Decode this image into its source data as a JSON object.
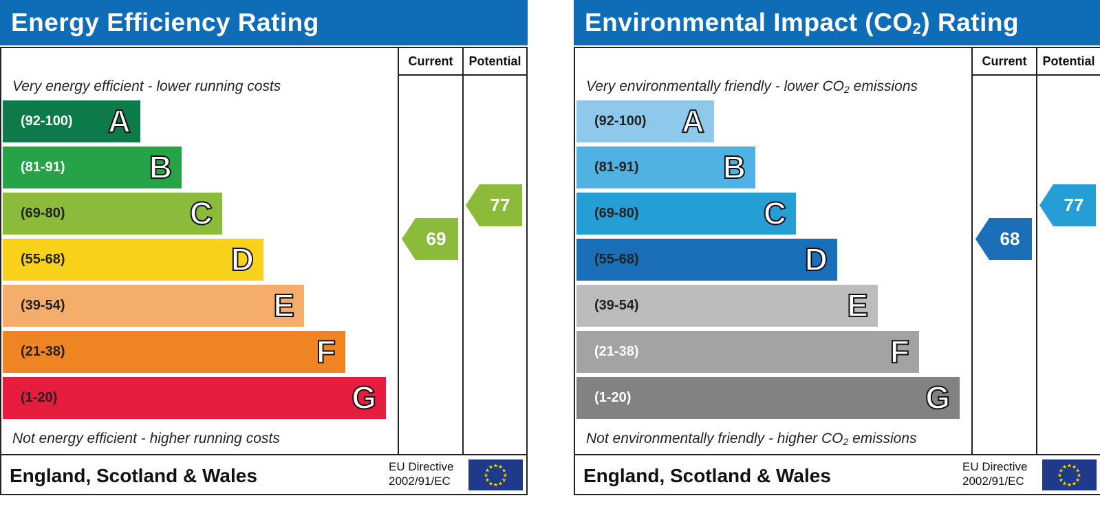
{
  "charts": [
    {
      "title": "Energy Efficiency Rating",
      "columns": {
        "current": "Current",
        "potential": "Potential"
      },
      "top_caption": "Very energy efficient - lower running costs",
      "bottom_caption": "Not energy efficient - higher running costs",
      "bands": [
        {
          "range": "(92-100)",
          "letter": "A",
          "color": "#0e7a4a",
          "text_color": "#ffffff"
        },
        {
          "range": "(81-91)",
          "letter": "B",
          "color": "#27a347",
          "text_color": "#ffffff"
        },
        {
          "range": "(69-80)",
          "letter": "C",
          "color": "#8cbb3c",
          "text_color": "#222222"
        },
        {
          "range": "(55-68)",
          "letter": "D",
          "color": "#f8d11a",
          "text_color": "#222222"
        },
        {
          "range": "(39-54)",
          "letter": "E",
          "color": "#f5ad6b",
          "text_color": "#222222"
        },
        {
          "range": "(21-38)",
          "letter": "F",
          "color": "#ee8424",
          "text_color": "#222222"
        },
        {
          "range": "(1-20)",
          "letter": "G",
          "color": "#e61d3c",
          "text_color": "#222222"
        }
      ],
      "current": {
        "value": "69",
        "color": "#8cbb3c"
      },
      "potential": {
        "value": "77",
        "color": "#8cbb3c"
      },
      "region": "England, Scotland & Wales",
      "directive_line1": "EU Directive",
      "directive_line2": "2002/91/EC"
    },
    {
      "title_parts": {
        "before": "Environmental Impact (CO",
        "sub": "2",
        "after": ") Rating"
      },
      "columns": {
        "current": "Current",
        "potential": "Potential"
      },
      "top_caption_parts": {
        "before": "Very environmentally friendly - lower CO",
        "sub": "2",
        "after": " emissions"
      },
      "bottom_caption_parts": {
        "before": "Not environmentally friendly - higher CO",
        "sub": "2",
        "after": " emissions"
      },
      "bands": [
        {
          "range": "(92-100)",
          "letter": "A",
          "color": "#8ec9ec",
          "text_color": "#222222"
        },
        {
          "range": "(81-91)",
          "letter": "B",
          "color": "#4fb2e3",
          "text_color": "#222222"
        },
        {
          "range": "(69-80)",
          "letter": "C",
          "color": "#249ed4",
          "text_color": "#222222"
        },
        {
          "range": "(55-68)",
          "letter": "D",
          "color": "#1a6fb8",
          "text_color": "#222222"
        },
        {
          "range": "(39-54)",
          "letter": "E",
          "color": "#bdbcbc",
          "text_color": "#222222"
        },
        {
          "range": "(21-38)",
          "letter": "F",
          "color": "#a3a3a3",
          "text_color": "#ffffff"
        },
        {
          "range": "(1-20)",
          "letter": "G",
          "color": "#828282",
          "text_color": "#ffffff"
        }
      ],
      "current": {
        "value": "68",
        "color": "#1a6fb8"
      },
      "potential": {
        "value": "77",
        "color": "#249ed4"
      },
      "region": "England, Scotland & Wales",
      "directive_line1": "EU Directive",
      "directive_line2": "2002/91/EC"
    }
  ],
  "chart_data": [
    {
      "type": "table",
      "title": "Energy Efficiency Rating",
      "categories": [
        "A",
        "B",
        "C",
        "D",
        "E",
        "F",
        "G"
      ],
      "ranges": [
        "(92-100)",
        "(81-91)",
        "(69-80)",
        "(55-68)",
        "(39-54)",
        "(21-38)",
        "(1-20)"
      ],
      "current": 69,
      "potential": 77
    },
    {
      "type": "table",
      "title": "Environmental Impact (CO2) Rating",
      "categories": [
        "A",
        "B",
        "C",
        "D",
        "E",
        "F",
        "G"
      ],
      "ranges": [
        "(92-100)",
        "(81-91)",
        "(69-80)",
        "(55-68)",
        "(39-54)",
        "(21-38)",
        "(1-20)"
      ],
      "current": 68,
      "potential": 77
    }
  ]
}
